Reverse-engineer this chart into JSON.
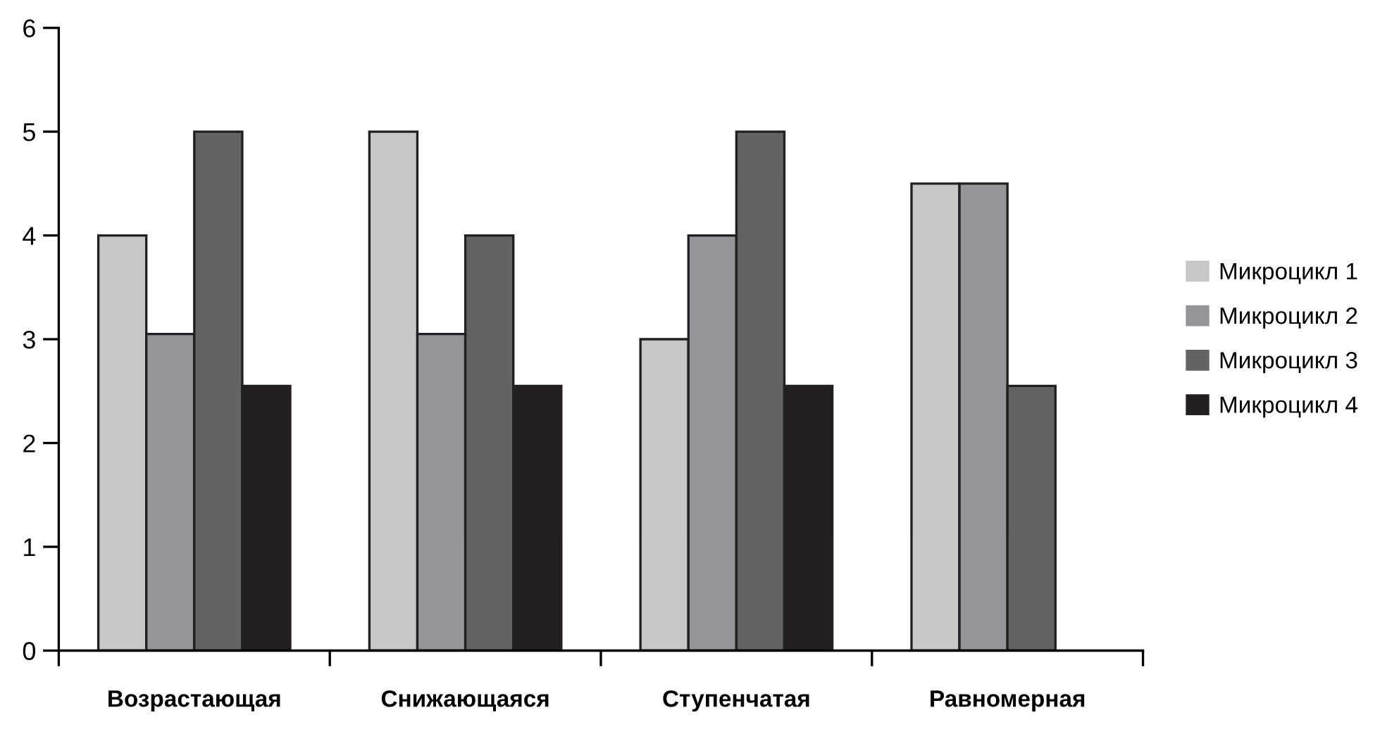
{
  "chart_data": {
    "type": "bar",
    "categories": [
      "Возрастающая",
      "Снижающаяся",
      "Ступенчатая",
      "Равномерная"
    ],
    "series": [
      {
        "name": "Микроцикл 1",
        "color": "#c6c7c9",
        "values": [
          4,
          5,
          3,
          4.5
        ]
      },
      {
        "name": "Микроцикл 2",
        "color": "#949598",
        "values": [
          3.05,
          3.05,
          4,
          4.5
        ]
      },
      {
        "name": "Микроцикл 3",
        "color": "#636365",
        "values": [
          5,
          4,
          5,
          2.55
        ]
      },
      {
        "name": "Микроцикл 4",
        "color": "#231f20",
        "values": [
          2.55,
          2.55,
          2.55,
          null
        ]
      }
    ],
    "ylim": [
      0,
      6
    ],
    "yticks": [
      0,
      1,
      2,
      3,
      4,
      5,
      6
    ],
    "grid": false,
    "legend": "right"
  }
}
